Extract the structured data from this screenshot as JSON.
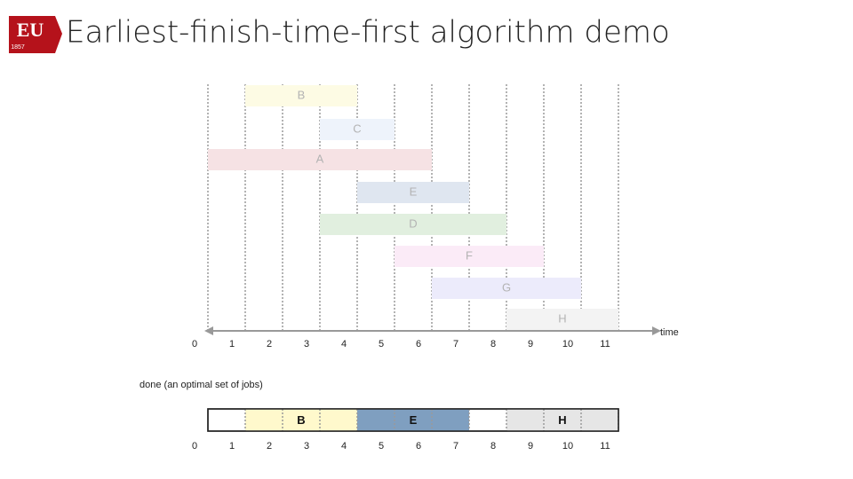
{
  "header": {
    "title": "Earliest-finish-time-first algorithm demo",
    "logo": {
      "text": "EU",
      "year": "1857"
    }
  },
  "axis": {
    "ticks": [
      0,
      1,
      2,
      3,
      4,
      5,
      6,
      7,
      8,
      9,
      10,
      11
    ],
    "label": "time"
  },
  "jobs": [
    {
      "label": "B",
      "start": 1,
      "end": 4,
      "color": "#fdfbe4"
    },
    {
      "label": "C",
      "start": 3,
      "end": 5,
      "color": "#eef3fb"
    },
    {
      "label": "A",
      "start": 0,
      "end": 6,
      "color": "#f6e2e4"
    },
    {
      "label": "E",
      "start": 4,
      "end": 7,
      "color": "#dfe6f0"
    },
    {
      "label": "D",
      "start": 3,
      "end": 8,
      "color": "#e1efdf"
    },
    {
      "label": "F",
      "start": 5,
      "end": 9,
      "color": "#fbebf7"
    },
    {
      "label": "G",
      "start": 6,
      "end": 10,
      "color": "#ecebfb"
    },
    {
      "label": "H",
      "start": 8,
      "end": 11,
      "color": "#f3f3f3"
    }
  ],
  "done": {
    "label": "done (an optimal set of jobs)",
    "jobs": [
      {
        "label": "B",
        "start": 1,
        "end": 4,
        "color": "#fff9cc"
      },
      {
        "label": "E",
        "start": 4,
        "end": 7,
        "color": "#7f9fc0"
      },
      {
        "label": "H",
        "start": 8,
        "end": 11,
        "color": "#e6e6e6"
      }
    ]
  }
}
